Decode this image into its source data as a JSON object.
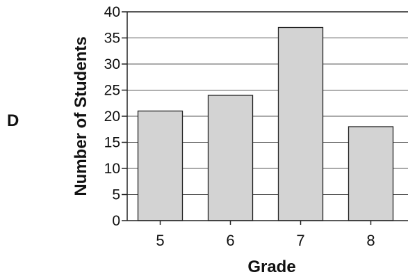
{
  "option_letter": "D",
  "chart_data": {
    "type": "bar",
    "categories": [
      "5",
      "6",
      "7",
      "8"
    ],
    "values": [
      21,
      24,
      37,
      18
    ],
    "title": "",
    "xlabel": "Grade",
    "ylabel": "Number of Students",
    "ylim": [
      0,
      40
    ],
    "yticks": [
      0,
      5,
      10,
      15,
      20,
      25,
      30,
      35,
      40
    ],
    "grid": true,
    "bar_color": "#d3d3d3"
  }
}
